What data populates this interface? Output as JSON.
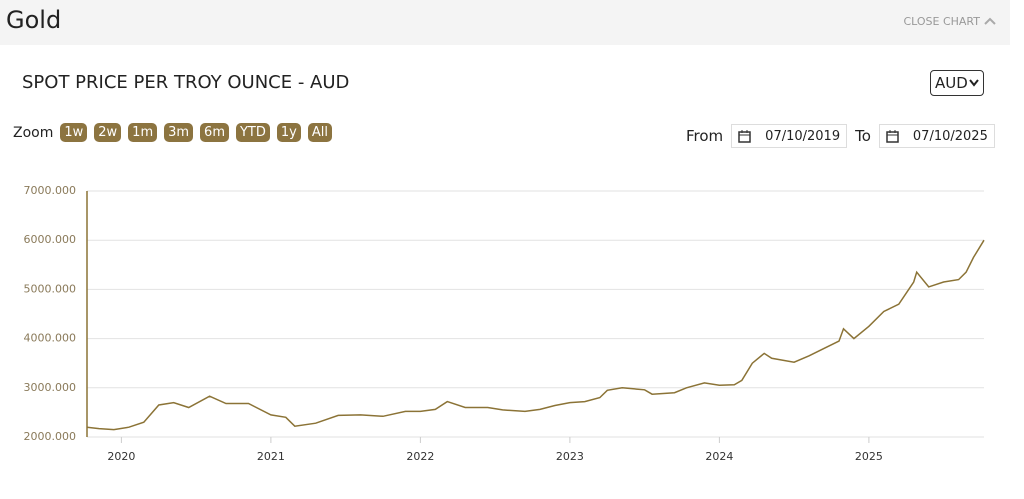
{
  "header": {
    "title": "Gold",
    "close": "CLOSE CHART"
  },
  "chart_title": "SPOT PRICE PER TROY OUNCE - AUD",
  "currency": "AUD",
  "zoom": {
    "label": "Zoom",
    "buttons": [
      "1w",
      "2w",
      "1m",
      "3m",
      "6m",
      "YTD",
      "1y",
      "All"
    ]
  },
  "range": {
    "from_label": "From",
    "from": "07/10/2019",
    "to_label": "To",
    "to": "07/10/2025"
  },
  "chart_data": {
    "type": "line",
    "color": "#8b7336",
    "grid": true,
    "x": [
      2019.77,
      2019.85,
      2019.95,
      2020.05,
      2020.15,
      2020.25,
      2020.35,
      2020.45,
      2020.59,
      2020.7,
      2020.85,
      2021.0,
      2021.1,
      2021.16,
      2021.3,
      2021.45,
      2021.6,
      2021.75,
      2021.9,
      2022.0,
      2022.1,
      2022.18,
      2022.3,
      2022.45,
      2022.55,
      2022.7,
      2022.8,
      2022.9,
      2023.0,
      2023.1,
      2023.2,
      2023.25,
      2023.35,
      2023.5,
      2023.55,
      2023.7,
      2023.78,
      2023.9,
      2024.0,
      2024.1,
      2024.15,
      2024.22,
      2024.3,
      2024.35,
      2024.5,
      2024.6,
      2024.7,
      2024.8,
      2024.83,
      2024.9,
      2025.0,
      2025.1,
      2025.2,
      2025.3,
      2025.32,
      2025.4,
      2025.5,
      2025.6,
      2025.65,
      2025.7,
      2025.77
    ],
    "values": [
      2200,
      2170,
      2150,
      2200,
      2300,
      2650,
      2700,
      2600,
      2830,
      2680,
      2680,
      2450,
      2400,
      2220,
      2280,
      2440,
      2450,
      2420,
      2520,
      2520,
      2560,
      2720,
      2600,
      2600,
      2550,
      2520,
      2560,
      2640,
      2700,
      2720,
      2800,
      2950,
      3000,
      2960,
      2870,
      2900,
      3000,
      3100,
      3050,
      3060,
      3150,
      3500,
      3700,
      3600,
      3520,
      3650,
      3800,
      3950,
      4200,
      4000,
      4250,
      4550,
      4700,
      5150,
      5350,
      5050,
      5150,
      5200,
      5350,
      5650,
      6000
    ],
    "xlim": [
      2019.77,
      2025.77
    ],
    "xticks": [
      2020,
      2021,
      2022,
      2023,
      2024,
      2025
    ],
    "ylim": [
      2000,
      7000
    ],
    "yticks": [
      {
        "value": 2000,
        "label": "2000.000"
      },
      {
        "value": 3000,
        "label": "3000.000"
      },
      {
        "value": 4000,
        "label": "4000.000"
      },
      {
        "value": 5000,
        "label": "5000.000"
      },
      {
        "value": 6000,
        "label": "6000.000"
      },
      {
        "value": 7000,
        "label": "7000.000"
      }
    ]
  }
}
